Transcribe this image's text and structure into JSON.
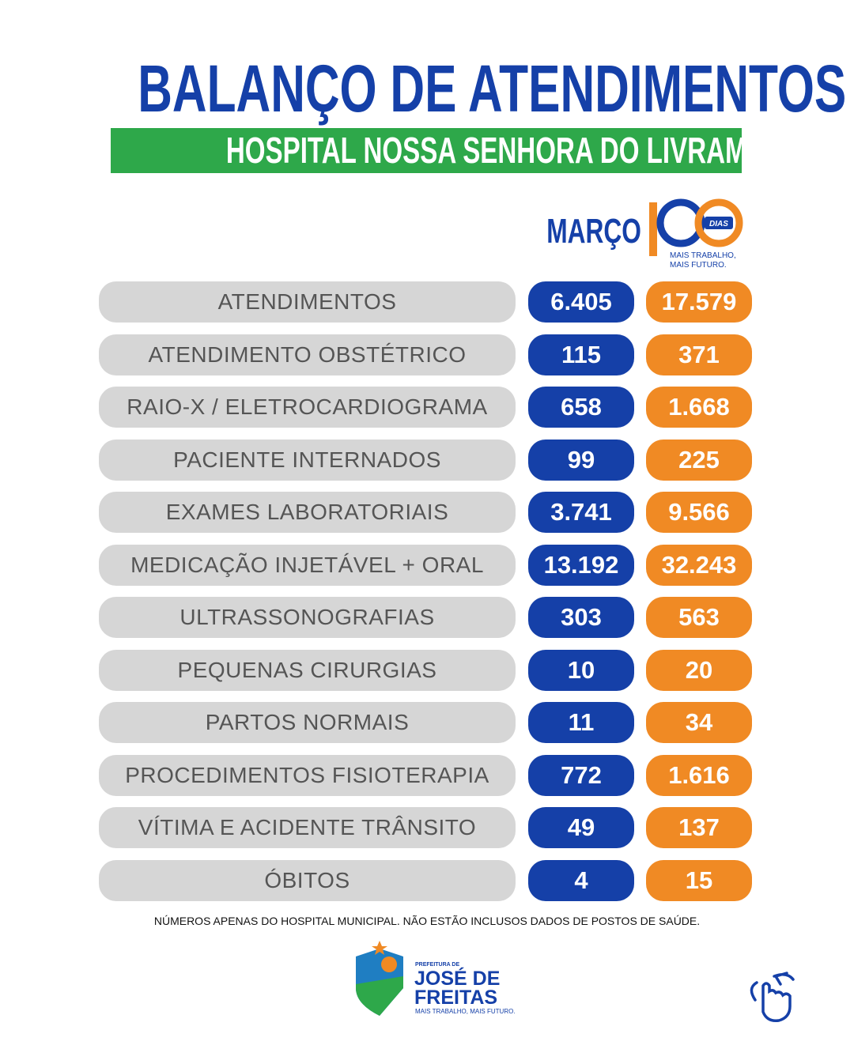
{
  "header": {
    "title": "BALANÇO DE ATENDIMENTOS",
    "subtitle": "HOSPITAL NOSSA SENHORA DO LIVRAMENTO"
  },
  "columns": {
    "month": "MARÇO",
    "campaign_badge": "DIAS",
    "campaign_slogan_1": "MAIS TRABALHO,",
    "campaign_slogan_2": "MAIS FUTURO."
  },
  "table": {
    "rows": [
      [
        "ATENDIMENTOS",
        "6.405",
        "17.579"
      ],
      [
        "ATENDIMENTO OBSTÉTRICO",
        "115",
        "371"
      ],
      [
        "RAIO-X / ELETROCARDIOGRAMA",
        "658",
        "1.668"
      ],
      [
        "PACIENTE INTERNADOS",
        "99",
        "225"
      ],
      [
        "EXAMES LABORATORIAIS",
        "3.741",
        "9.566"
      ],
      [
        "MEDICAÇÃO INJETÁVEL + ORAL",
        "13.192",
        "32.243"
      ],
      [
        "ULTRASSONOGRAFIAS",
        "303",
        "563"
      ],
      [
        "PEQUENAS CIRURGIAS",
        "10",
        "20"
      ],
      [
        "PARTOS NORMAIS",
        "11",
        "34"
      ],
      [
        "PROCEDIMENTOS FISIOTERAPIA",
        "772",
        "1.616"
      ],
      [
        "VÍTIMA E ACIDENTE TRÂNSITO",
        "49",
        "137"
      ],
      [
        "ÓBITOS",
        "4",
        "15"
      ]
    ]
  },
  "footnote": "NÚMEROS APENAS DO HOSPITAL MUNICIPAL. NÃO ESTÃO INCLUSOS DADOS DE POSTOS DE SAÚDE.",
  "logo": {
    "prefix": "PREFEITURA DE",
    "name_1": "JOSÉ DE",
    "name_2": "FREITAS",
    "slogan": "MAIS TRABALHO, MAIS FUTURO."
  }
}
